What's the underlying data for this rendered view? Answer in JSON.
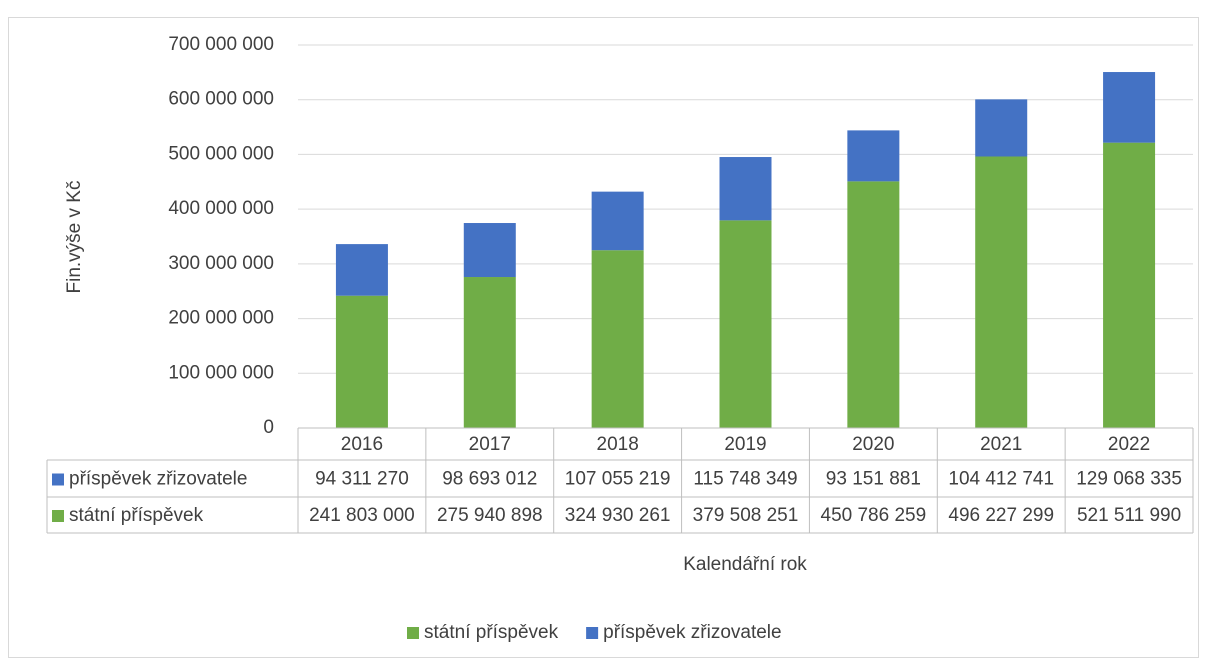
{
  "chart_data": {
    "type": "stacked_bar",
    "categories": [
      "2016",
      "2017",
      "2018",
      "2019",
      "2020",
      "2021",
      "2022"
    ],
    "series": [
      {
        "name": "státní příspěvek",
        "color": "#70ad47",
        "values": [
          241803000,
          275940898,
          324930261,
          379508251,
          450786259,
          496227299,
          521511990
        ],
        "value_labels": [
          "241 803 000",
          "275 940 898",
          "324 930 261",
          "379 508 251",
          "450 786 259",
          "496 227 299",
          "521 511 990"
        ]
      },
      {
        "name": "příspěvek zřizovatele",
        "color": "#4472c4",
        "values": [
          94311270,
          98693012,
          107055219,
          115748349,
          93151881,
          104412741,
          129068335
        ],
        "value_labels": [
          "94 311 270",
          "98 693 012",
          "107 055 219",
          "115 748 349",
          "93 151 881",
          "104 412 741",
          "129 068 335"
        ]
      }
    ],
    "ylabel": "Fin.výše v Kč",
    "xlabel": "Kalendářní rok",
    "ylim": [
      0,
      700000000
    ],
    "yticks": [
      0,
      {
        "value": 100000000,
        "label": "100 000 000"
      },
      {
        "value": 200000000,
        "label": "200 000 000"
      },
      {
        "value": 300000000,
        "label": "300 000 000"
      },
      {
        "value": 400000000,
        "label": "400 000 000"
      },
      {
        "value": 500000000,
        "label": "500 000 000"
      },
      {
        "value": 600000000,
        "label": "600 000 000"
      },
      {
        "value": 700000000,
        "label": "700 000 000"
      }
    ],
    "grid": true,
    "legend": "bottom"
  }
}
